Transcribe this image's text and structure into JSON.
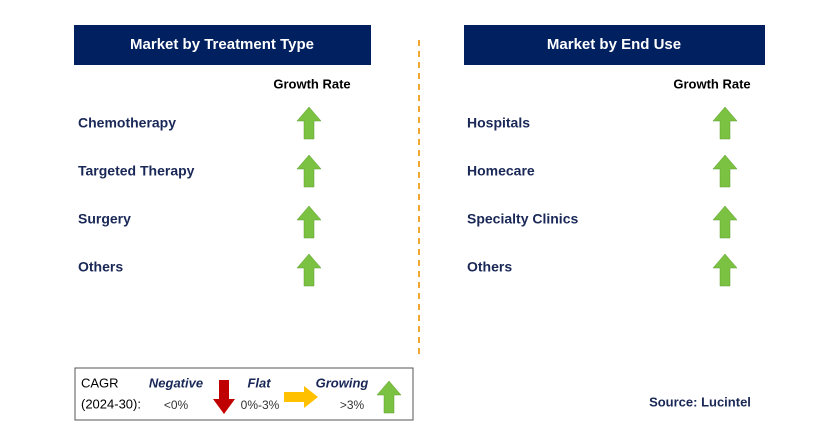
{
  "panels": [
    {
      "title": "Market by Treatment Type",
      "column_header": "Growth Rate",
      "rows": [
        "Chemotherapy",
        "Targeted Therapy",
        "Surgery",
        "Others"
      ]
    },
    {
      "title": "Market by End Use",
      "column_header": "Growth Rate",
      "rows": [
        "Hospitals",
        "Homecare",
        "Specialty Clinics",
        "Others"
      ]
    }
  ],
  "legend": {
    "label_line1": "CAGR",
    "label_line2": "(2024-30):",
    "items": [
      {
        "name": "Negative",
        "range": "<0%"
      },
      {
        "name": "Flat",
        "range": "0%-3%"
      },
      {
        "name": "Growing",
        "range": ">3%"
      }
    ]
  },
  "source": "Source: Lucintel"
}
